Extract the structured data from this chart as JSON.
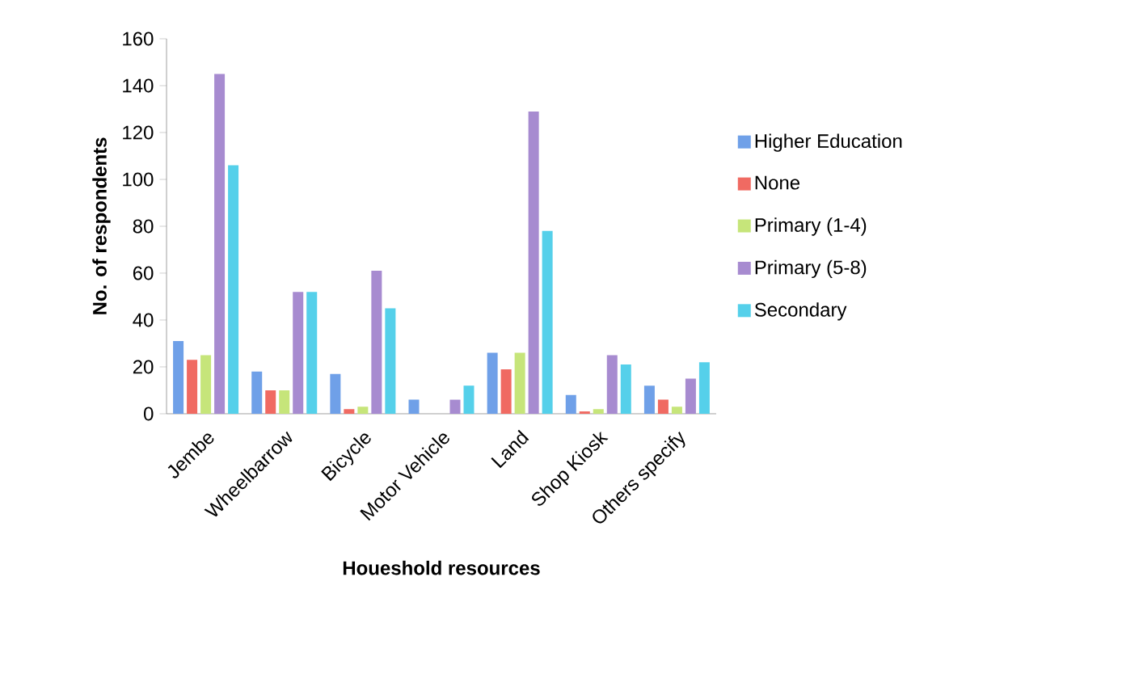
{
  "chart_data": {
    "type": "bar",
    "xlabel": "Houeshold resources",
    "ylabel": "No. of respondents",
    "categories": [
      "Jembe",
      "Wheelbarrow",
      "Bicycle",
      "Motor Vehicle",
      "Land",
      "Shop Kiosk",
      "Others specify"
    ],
    "series": [
      {
        "name": "Higher Education",
        "color": "#6fa0e8",
        "values": [
          31,
          18,
          17,
          6,
          26,
          8,
          12
        ]
      },
      {
        "name": "None",
        "color": "#f06a62",
        "values": [
          23,
          10,
          2,
          0,
          19,
          1,
          6
        ]
      },
      {
        "name": "Primary (1-4)",
        "color": "#c6e57a",
        "values": [
          25,
          10,
          3,
          0,
          26,
          2,
          3
        ]
      },
      {
        "name": "Primary (5-8)",
        "color": "#a78bd0",
        "values": [
          145,
          52,
          61,
          6,
          129,
          25,
          15
        ]
      },
      {
        "name": "Secondary",
        "color": "#55d0ea",
        "values": [
          106,
          52,
          45,
          12,
          78,
          21,
          22
        ]
      }
    ],
    "ylim": [
      0,
      160
    ],
    "yticks": [
      0,
      20,
      40,
      60,
      80,
      100,
      120,
      140,
      160
    ],
    "grid": false,
    "legend": "right"
  }
}
